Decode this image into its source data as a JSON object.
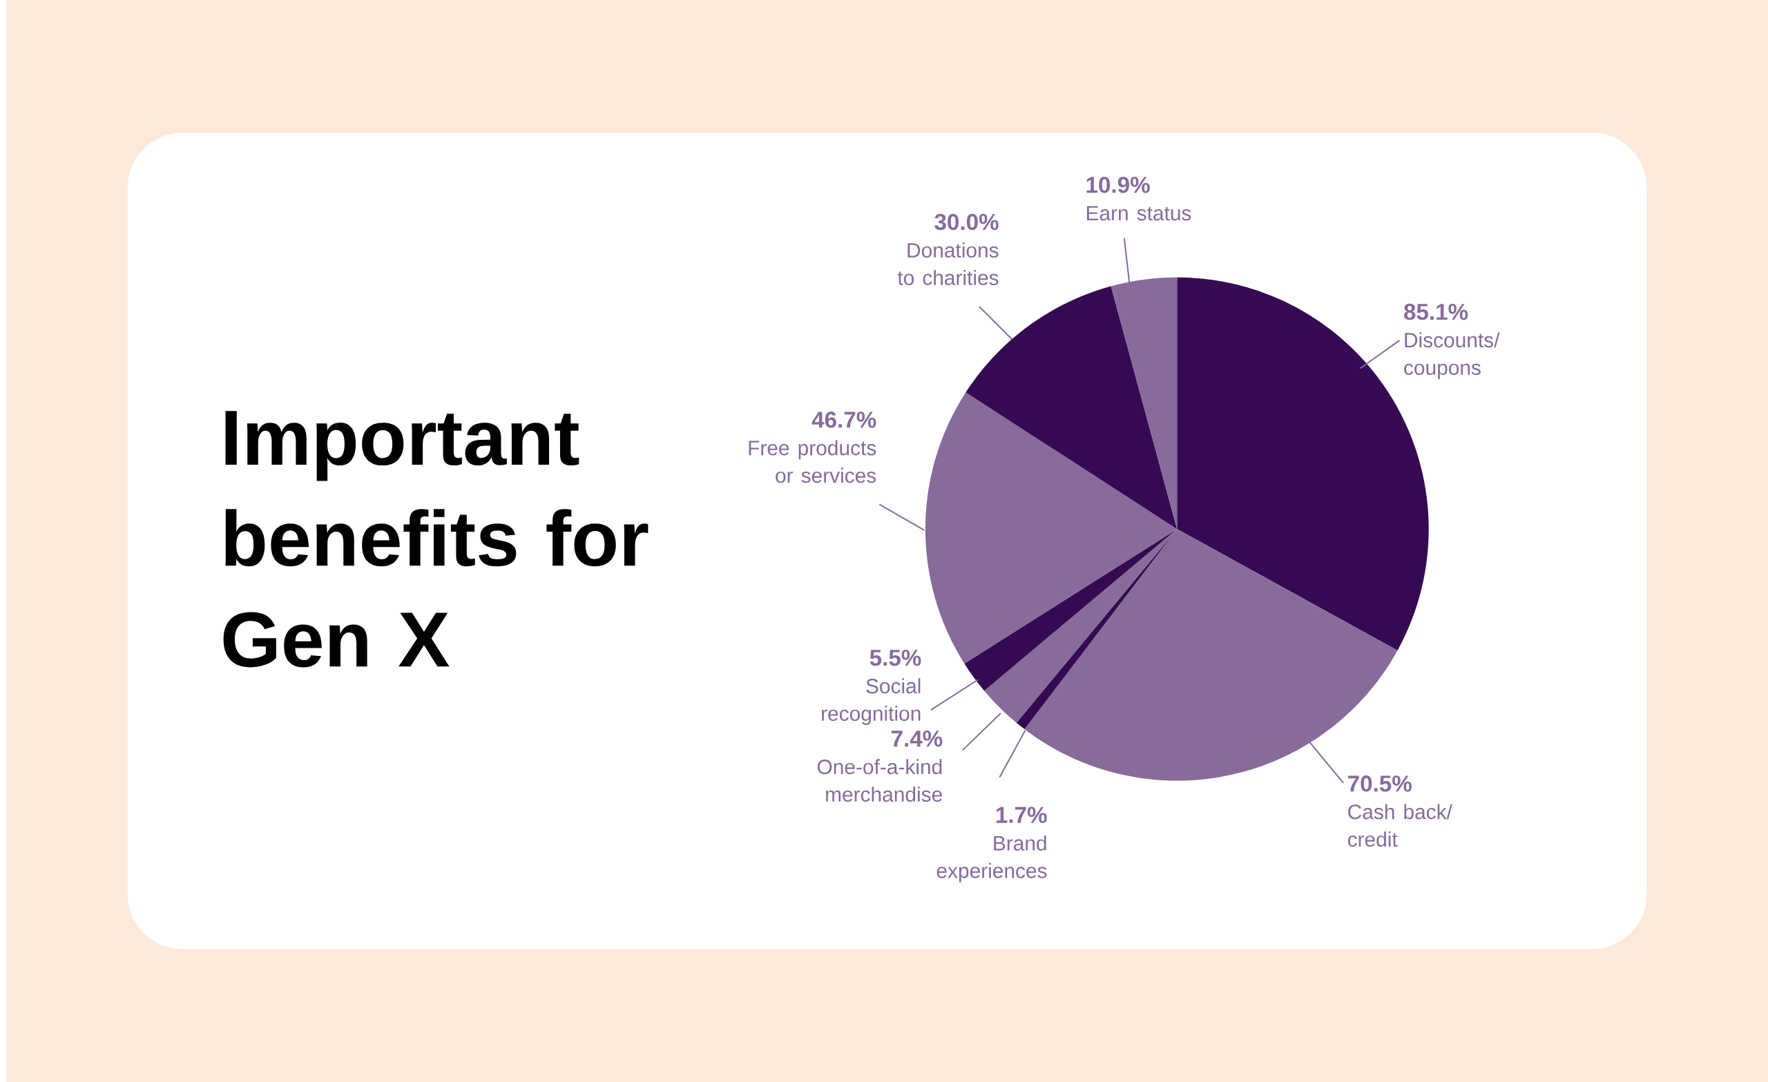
{
  "chart_data": {
    "type": "pie",
    "title": "Important benefits for Gen X",
    "categories": [
      "Discounts/ coupons",
      "Cash back/ credit",
      "Brand experiences",
      "One-of-a-kind merchandise",
      "Social recognition",
      "Free products or services",
      "Donations to charities",
      "Earn status"
    ],
    "values": [
      85.1,
      70.5,
      1.7,
      7.4,
      5.5,
      46.7,
      30.0,
      10.9
    ],
    "value_labels": [
      "85.1%",
      "70.5%",
      "1.7%",
      "7.4%",
      "5.5%",
      "46.7%",
      "30.0%",
      "10.9%"
    ],
    "colors": [
      "#360a52",
      "#876b9b",
      "#360a52",
      "#876b9b",
      "#360a52",
      "#876b9b",
      "#360a52",
      "#876b9b"
    ]
  }
}
